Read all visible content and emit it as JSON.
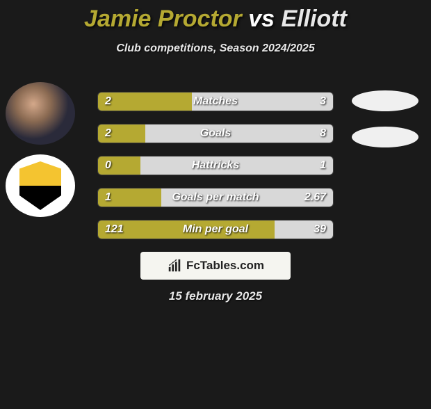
{
  "title": {
    "player1": "Jamie Proctor",
    "vs": "vs",
    "player2": "Elliott"
  },
  "subtitle": "Club competitions, Season 2024/2025",
  "colors": {
    "player1": "#b5a932",
    "player2": "#d8d8d8",
    "bar_bg": "#2a2a2a"
  },
  "stats": [
    {
      "label": "Matches",
      "left_val": "2",
      "right_val": "3",
      "left_pct": 40,
      "right_pct": 60
    },
    {
      "label": "Goals",
      "left_val": "2",
      "right_val": "8",
      "left_pct": 20,
      "right_pct": 80
    },
    {
      "label": "Hattricks",
      "left_val": "0",
      "right_val": "1",
      "left_pct": 18,
      "right_pct": 82
    },
    {
      "label": "Goals per match",
      "left_val": "1",
      "right_val": "2.67",
      "left_pct": 27,
      "right_pct": 73
    },
    {
      "label": "Min per goal",
      "left_val": "121",
      "right_val": "39",
      "left_pct": 75,
      "right_pct": 25
    }
  ],
  "branding": "FcTables.com",
  "date": "15 february 2025"
}
